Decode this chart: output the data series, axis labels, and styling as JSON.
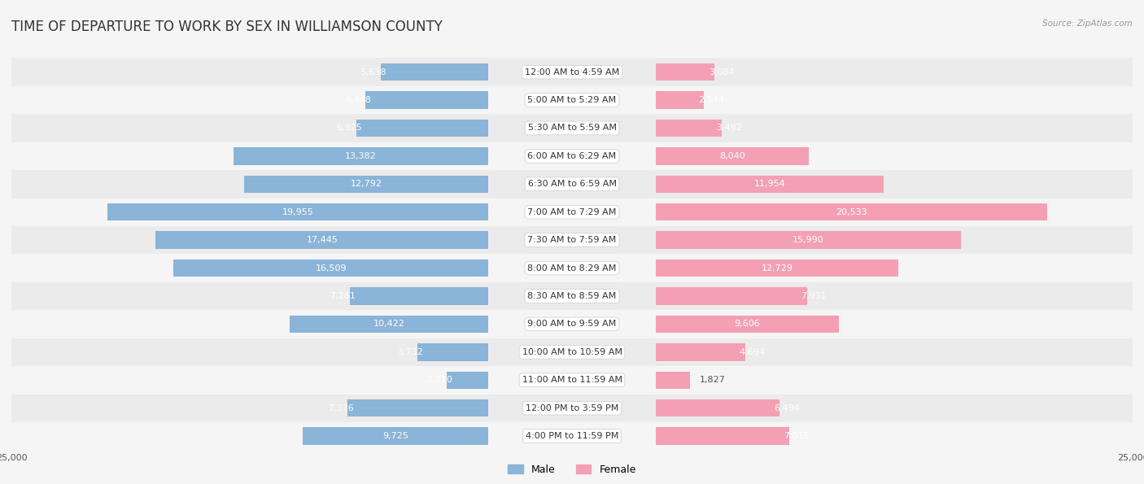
{
  "title": "TIME OF DEPARTURE TO WORK BY SEX IN WILLIAMSON COUNTY",
  "source": "Source: ZipAtlas.com",
  "categories": [
    "12:00 AM to 4:59 AM",
    "5:00 AM to 5:29 AM",
    "5:30 AM to 5:59 AM",
    "6:00 AM to 6:29 AM",
    "6:30 AM to 6:59 AM",
    "7:00 AM to 7:29 AM",
    "7:30 AM to 7:59 AM",
    "8:00 AM to 8:29 AM",
    "8:30 AM to 8:59 AM",
    "9:00 AM to 9:59 AM",
    "10:00 AM to 10:59 AM",
    "11:00 AM to 11:59 AM",
    "12:00 PM to 3:59 PM",
    "4:00 PM to 11:59 PM"
  ],
  "male": [
    5638,
    6448,
    6925,
    13382,
    12792,
    19955,
    17445,
    16509,
    7281,
    10422,
    3732,
    2210,
    7376,
    9725
  ],
  "female": [
    3084,
    2544,
    3482,
    8040,
    11954,
    20533,
    15990,
    12729,
    7931,
    9606,
    4694,
    1827,
    6494,
    7015
  ],
  "male_color": "#8ab4d8",
  "female_color": "#f4a0b4",
  "bar_height": 0.62,
  "xlim": 25000,
  "background_color": "#f5f5f5",
  "title_fontsize": 12,
  "label_fontsize": 8,
  "axis_fontsize": 8,
  "category_fontsize": 8
}
